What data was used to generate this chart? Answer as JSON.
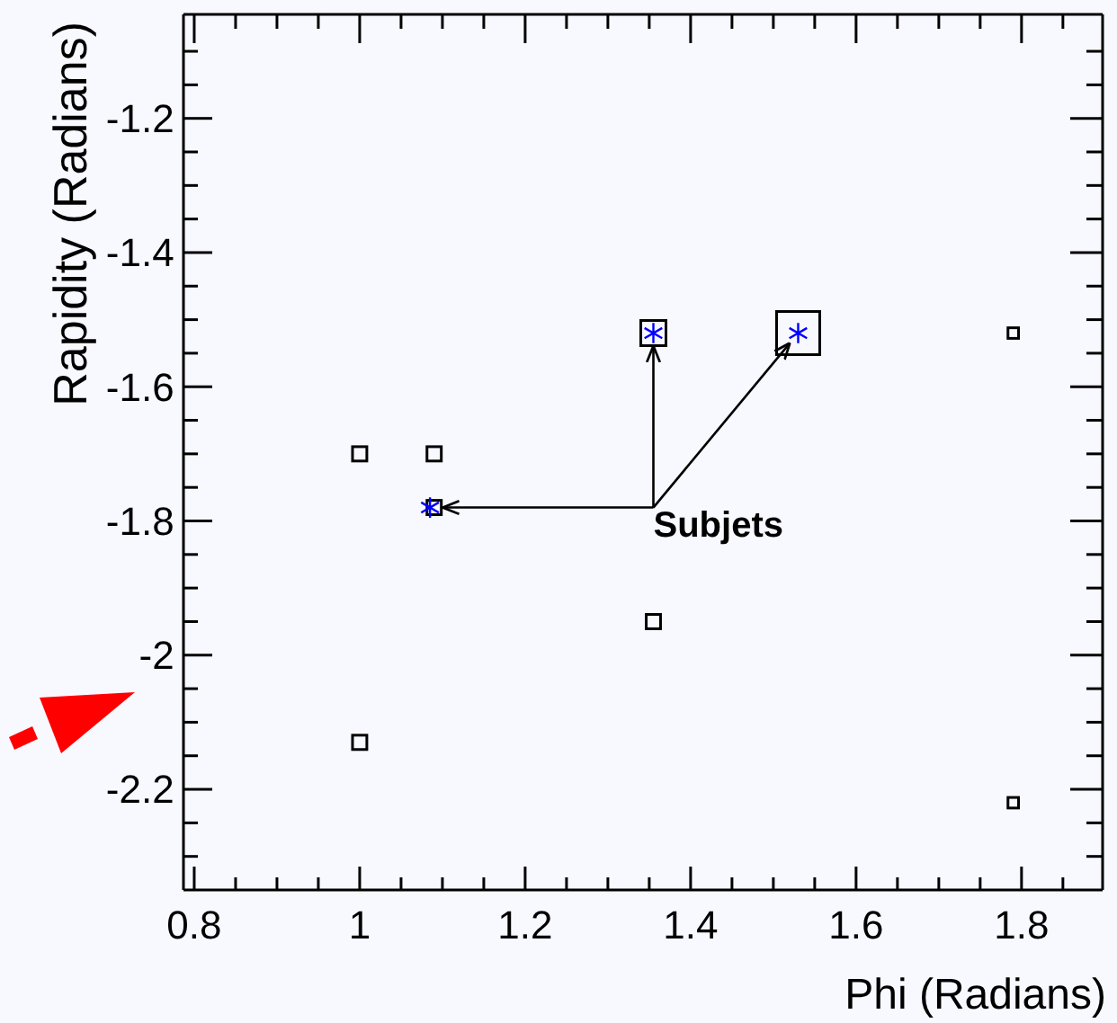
{
  "chart_data": {
    "type": "bubble",
    "xlabel": "Phi (Radians)",
    "ylabel": "Rapidity (Radians)",
    "xlim": [
      0.787,
      1.898
    ],
    "ylim": [
      -2.35,
      -1.045
    ],
    "xticks": [
      0.8,
      {
        "value": 0.85,
        "label": null
      },
      {
        "value": 0.9,
        "label": null
      },
      {
        "value": 0.95,
        "label": null
      },
      1,
      {
        "value": 1.05,
        "label": null
      },
      {
        "value": 1.1,
        "label": null
      },
      {
        "value": 1.15,
        "label": null
      },
      1.2,
      {
        "value": 1.25,
        "label": null
      },
      {
        "value": 1.3,
        "label": null
      },
      {
        "value": 1.35,
        "label": null
      },
      1.4,
      {
        "value": 1.45,
        "label": null
      },
      {
        "value": 1.5,
        "label": null
      },
      {
        "value": 1.55,
        "label": null
      },
      1.6,
      {
        "value": 1.65,
        "label": null
      },
      {
        "value": 1.7,
        "label": null
      },
      {
        "value": 1.75,
        "label": null
      },
      1.8,
      {
        "value": 1.85,
        "label": null
      }
    ],
    "yticks": [
      {
        "value": -2.3,
        "label": null
      },
      {
        "value": -2.25,
        "label": null
      },
      -2.2,
      {
        "value": -2.15,
        "label": null
      },
      {
        "value": -2.1,
        "label": null
      },
      {
        "value": -2.05,
        "label": null
      },
      -2,
      {
        "value": -1.95,
        "label": null
      },
      {
        "value": -1.9,
        "label": null
      },
      {
        "value": -1.85,
        "label": null
      },
      -1.8,
      {
        "value": -1.75,
        "label": null
      },
      {
        "value": -1.7,
        "label": null
      },
      {
        "value": -1.65,
        "label": null
      },
      -1.6,
      {
        "value": -1.55,
        "label": null
      },
      {
        "value": -1.5,
        "label": null
      },
      {
        "value": -1.45,
        "label": null
      },
      -1.4,
      {
        "value": -1.35,
        "label": null
      },
      {
        "value": -1.3,
        "label": null
      },
      {
        "value": -1.25,
        "label": null
      },
      -1.2,
      {
        "value": -1.15,
        "label": null
      },
      {
        "value": -1.1,
        "label": null
      }
    ],
    "series": [
      {
        "marker": "square",
        "color": "#000000",
        "x": [
          1.0,
          1.09,
          1.09,
          1.0,
          1.355,
          1.355,
          1.53,
          1.79,
          1.79
        ],
        "values": [
          -1.7,
          -1.7,
          -1.78,
          -2.13,
          -1.52,
          -1.95,
          -1.52,
          -1.52,
          -2.22
        ],
        "sizes": [
          0.11,
          0.11,
          0.11,
          0.11,
          0.34,
          0.11,
          1,
          0.06,
          0.06
        ]
      },
      {
        "type": "scatter",
        "marker": "cross",
        "color": "#0000ff",
        "x": [
          1.085,
          1.355,
          1.53
        ],
        "values": [
          -1.78,
          -1.52,
          -1.52
        ]
      }
    ],
    "annotations": [
      {
        "text": "Subjets",
        "x": 1.085,
        "y": -1.78
      }
    ]
  }
}
